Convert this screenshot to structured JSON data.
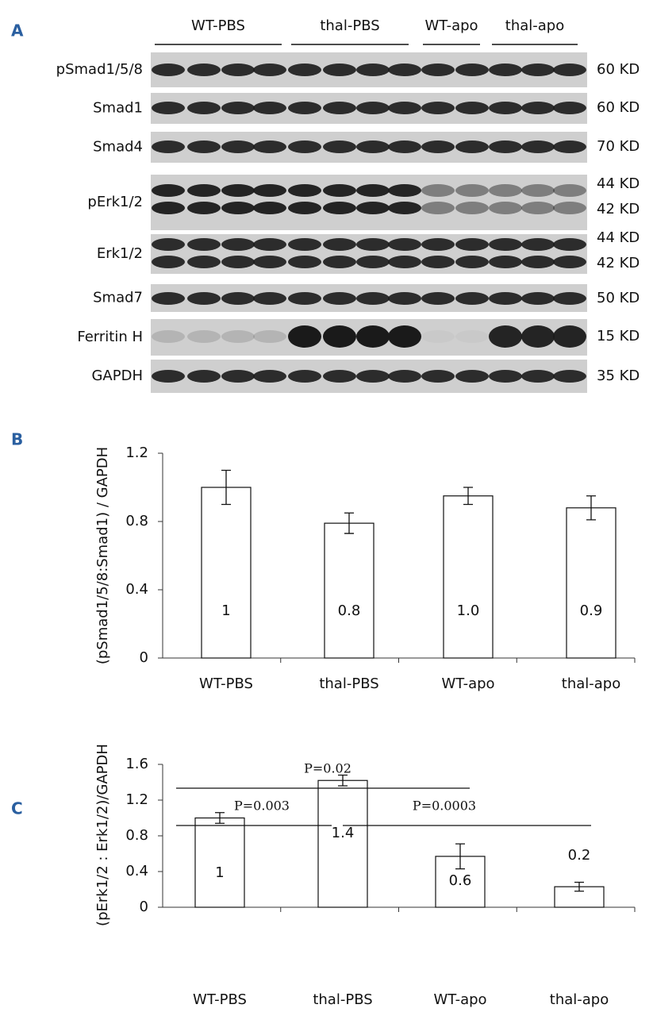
{
  "panel_labels": [
    "A",
    "B",
    "C"
  ],
  "blot": {
    "groups": [
      "WT-PBS",
      "thal-PBS",
      "WT-apo",
      "thal-apo"
    ],
    "rows": [
      {
        "label": "pSmad1/5/8",
        "kd": [
          "60 KD"
        ]
      },
      {
        "label": "Smad1",
        "kd": [
          "60 KD"
        ]
      },
      {
        "label": "Smad4",
        "kd": [
          "70 KD"
        ]
      },
      {
        "label": "pErk1/2",
        "kd": [
          "44 KD",
          "42 KD"
        ]
      },
      {
        "label": "Erk1/2",
        "kd": [
          "44 KD",
          "42 KD"
        ]
      },
      {
        "label": "Smad7",
        "kd": [
          "50 KD"
        ]
      },
      {
        "label": "Ferritin H",
        "kd": [
          "15 KD"
        ]
      },
      {
        "label": "GAPDH",
        "kd": [
          "35 KD"
        ]
      }
    ]
  },
  "chart_data": [
    {
      "type": "bar",
      "y_label": "(pSmad1/5/8:Smad1) / GAPDH",
      "categories": [
        "WT-PBS",
        "thal-PBS",
        "WT-apo",
        "thal-apo"
      ],
      "values": [
        1.0,
        0.79,
        0.95,
        0.88
      ],
      "errors": [
        0.1,
        0.06,
        0.05,
        0.07
      ],
      "value_labels": [
        "1",
        "0.8",
        "1.0",
        "0.9"
      ],
      "color": "#ffffff",
      "ylim": [
        0,
        1.2
      ],
      "yticks": [
        0,
        0.4,
        0.8,
        1.2
      ]
    },
    {
      "type": "bar",
      "y_label": "(pErk1/2 : Erk1/2)/GAPDH",
      "categories": [
        "WT-PBS",
        "thal-PBS",
        "WT-apo",
        "thal-apo"
      ],
      "values": [
        1.0,
        1.42,
        0.57,
        0.23
      ],
      "errors": [
        0.06,
        0.06,
        0.14,
        0.05
      ],
      "value_labels": [
        "1",
        "1.4",
        "0.6",
        "0.2"
      ],
      "color": "#ffffff",
      "ylim": [
        0,
        1.6
      ],
      "yticks": [
        0,
        0.4,
        0.8,
        1.2,
        1.6
      ],
      "annotations": [
        "P=0.02",
        "P=0.003",
        "P=0.0003"
      ]
    }
  ]
}
